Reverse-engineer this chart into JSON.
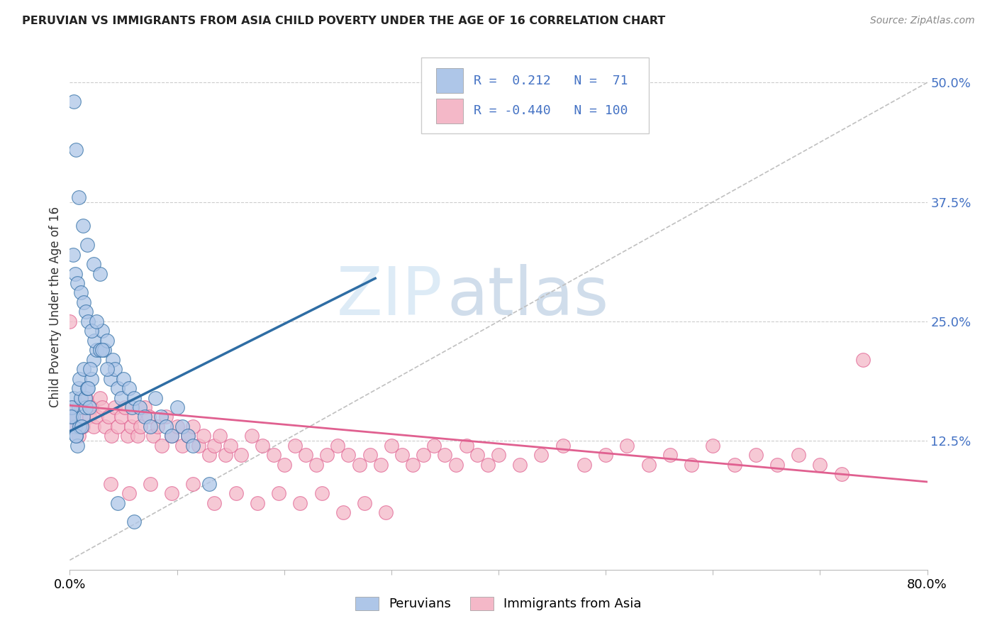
{
  "title": "PERUVIAN VS IMMIGRANTS FROM ASIA CHILD POVERTY UNDER THE AGE OF 16 CORRELATION CHART",
  "source": "Source: ZipAtlas.com",
  "ylabel": "Child Poverty Under the Age of 16",
  "ytick_labels": [
    "12.5%",
    "25.0%",
    "37.5%",
    "50.0%"
  ],
  "ytick_values": [
    0.125,
    0.25,
    0.375,
    0.5
  ],
  "xlim": [
    0.0,
    0.8
  ],
  "ylim": [
    -0.01,
    0.54
  ],
  "legend_label1": "Peruvians",
  "legend_label2": "Immigrants from Asia",
  "R1": 0.212,
  "N1": 71,
  "R2": -0.44,
  "N2": 100,
  "color_blue": "#aec6e8",
  "color_pink": "#f4b8c8",
  "color_blue_line": "#2e6da4",
  "color_pink_line": "#e06090",
  "color_diag": "#c0c0c0",
  "watermark_zip": "ZIP",
  "watermark_atlas": "atlas",
  "blue_x": [
    0.005,
    0.008,
    0.003,
    0.006,
    0.004,
    0.007,
    0.002,
    0.009,
    0.001,
    0.006,
    0.01,
    0.012,
    0.008,
    0.015,
    0.011,
    0.009,
    0.014,
    0.013,
    0.016,
    0.018,
    0.02,
    0.022,
    0.025,
    0.019,
    0.017,
    0.023,
    0.028,
    0.03,
    0.032,
    0.035,
    0.038,
    0.04,
    0.042,
    0.045,
    0.048,
    0.05,
    0.055,
    0.058,
    0.06,
    0.065,
    0.07,
    0.075,
    0.08,
    0.085,
    0.09,
    0.095,
    0.1,
    0.105,
    0.11,
    0.115,
    0.003,
    0.005,
    0.007,
    0.01,
    0.013,
    0.015,
    0.017,
    0.02,
    0.025,
    0.03,
    0.004,
    0.006,
    0.008,
    0.012,
    0.016,
    0.022,
    0.028,
    0.035,
    0.045,
    0.06,
    0.13
  ],
  "blue_y": [
    0.14,
    0.16,
    0.15,
    0.13,
    0.17,
    0.12,
    0.16,
    0.14,
    0.15,
    0.13,
    0.17,
    0.15,
    0.18,
    0.16,
    0.14,
    0.19,
    0.17,
    0.2,
    0.18,
    0.16,
    0.19,
    0.21,
    0.22,
    0.2,
    0.18,
    0.23,
    0.22,
    0.24,
    0.22,
    0.23,
    0.19,
    0.21,
    0.2,
    0.18,
    0.17,
    0.19,
    0.18,
    0.16,
    0.17,
    0.16,
    0.15,
    0.14,
    0.17,
    0.15,
    0.14,
    0.13,
    0.16,
    0.14,
    0.13,
    0.12,
    0.32,
    0.3,
    0.29,
    0.28,
    0.27,
    0.26,
    0.25,
    0.24,
    0.25,
    0.22,
    0.48,
    0.43,
    0.38,
    0.35,
    0.33,
    0.31,
    0.3,
    0.2,
    0.06,
    0.04,
    0.08
  ],
  "pink_x": [
    0.002,
    0.004,
    0.006,
    0.008,
    0.01,
    0.012,
    0.015,
    0.018,
    0.02,
    0.022,
    0.025,
    0.028,
    0.03,
    0.033,
    0.036,
    0.039,
    0.042,
    0.045,
    0.048,
    0.051,
    0.054,
    0.057,
    0.06,
    0.063,
    0.066,
    0.07,
    0.074,
    0.078,
    0.082,
    0.086,
    0.09,
    0.095,
    0.1,
    0.105,
    0.11,
    0.115,
    0.12,
    0.125,
    0.13,
    0.135,
    0.14,
    0.145,
    0.15,
    0.16,
    0.17,
    0.18,
    0.19,
    0.2,
    0.21,
    0.22,
    0.23,
    0.24,
    0.25,
    0.26,
    0.27,
    0.28,
    0.29,
    0.3,
    0.31,
    0.32,
    0.33,
    0.34,
    0.35,
    0.36,
    0.37,
    0.38,
    0.39,
    0.4,
    0.42,
    0.44,
    0.46,
    0.48,
    0.5,
    0.52,
    0.54,
    0.56,
    0.58,
    0.6,
    0.62,
    0.64,
    0.66,
    0.68,
    0.7,
    0.72,
    0.74,
    0.038,
    0.055,
    0.075,
    0.095,
    0.115,
    0.135,
    0.155,
    0.175,
    0.195,
    0.215,
    0.235,
    0.255,
    0.275,
    0.295,
    0.0
  ],
  "pink_y": [
    0.16,
    0.14,
    0.15,
    0.13,
    0.16,
    0.14,
    0.17,
    0.15,
    0.16,
    0.14,
    0.15,
    0.17,
    0.16,
    0.14,
    0.15,
    0.13,
    0.16,
    0.14,
    0.15,
    0.16,
    0.13,
    0.14,
    0.15,
    0.13,
    0.14,
    0.16,
    0.15,
    0.13,
    0.14,
    0.12,
    0.15,
    0.13,
    0.14,
    0.12,
    0.13,
    0.14,
    0.12,
    0.13,
    0.11,
    0.12,
    0.13,
    0.11,
    0.12,
    0.11,
    0.13,
    0.12,
    0.11,
    0.1,
    0.12,
    0.11,
    0.1,
    0.11,
    0.12,
    0.11,
    0.1,
    0.11,
    0.1,
    0.12,
    0.11,
    0.1,
    0.11,
    0.12,
    0.11,
    0.1,
    0.12,
    0.11,
    0.1,
    0.11,
    0.1,
    0.11,
    0.12,
    0.1,
    0.11,
    0.12,
    0.1,
    0.11,
    0.1,
    0.12,
    0.1,
    0.11,
    0.1,
    0.11,
    0.1,
    0.09,
    0.21,
    0.08,
    0.07,
    0.08,
    0.07,
    0.08,
    0.06,
    0.07,
    0.06,
    0.07,
    0.06,
    0.07,
    0.05,
    0.06,
    0.05,
    0.25
  ],
  "blue_line_x": [
    0.0,
    0.285
  ],
  "blue_line_y": [
    0.135,
    0.295
  ],
  "pink_line_x": [
    0.0,
    0.8
  ],
  "pink_line_y": [
    0.162,
    0.082
  ],
  "diag_line_x": [
    0.0,
    0.8
  ],
  "diag_line_y": [
    0.0,
    0.5
  ]
}
